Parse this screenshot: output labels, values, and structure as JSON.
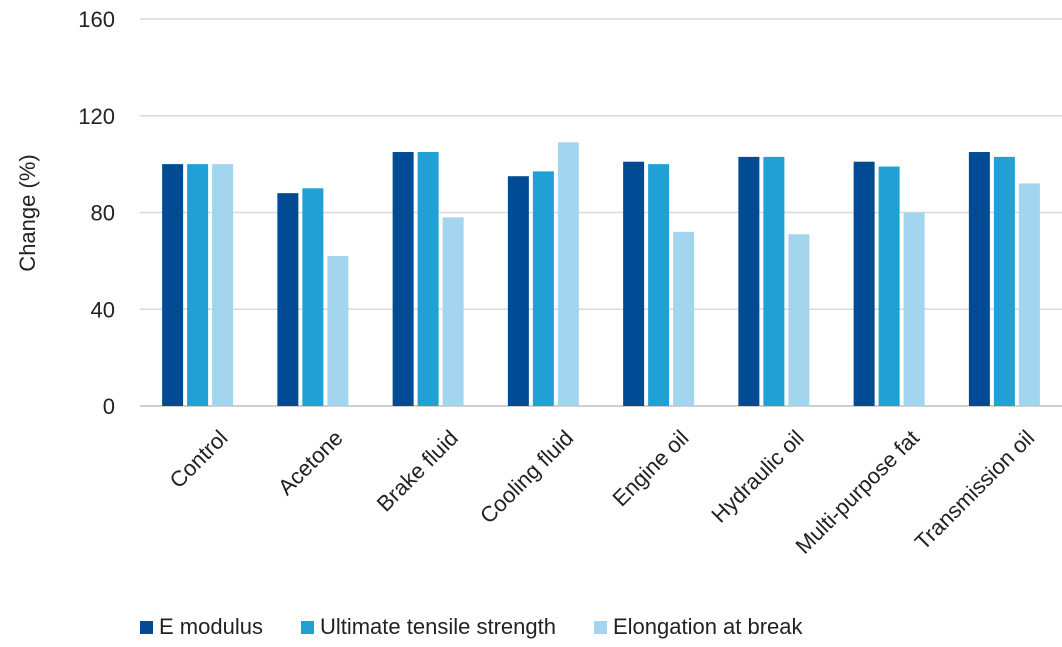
{
  "chart_data": {
    "type": "bar",
    "title": "",
    "xlabel": "",
    "ylabel": "Change (%)",
    "ylim": [
      0,
      160
    ],
    "yticks": [
      0,
      40,
      80,
      120,
      160
    ],
    "grid": true,
    "legend_position": "bottom",
    "categories": [
      "Control",
      "Acetone",
      "Brake fluid",
      "Cooling fluid",
      "Engine oil",
      "Hydraulic oil",
      "Multi-purpose fat",
      "Transmission oil"
    ],
    "series": [
      {
        "name": "E modulus",
        "color": "#004b93",
        "values": [
          100,
          88,
          105,
          95,
          101,
          103,
          101,
          105
        ]
      },
      {
        "name": "Ultimate tensile strength",
        "color": "#21a0d6",
        "values": [
          100,
          90,
          105,
          97,
          100,
          103,
          99,
          103
        ]
      },
      {
        "name": "Elongation at break",
        "color": "#a3d5ee",
        "values": [
          100,
          62,
          78,
          109,
          72,
          71,
          80,
          92
        ]
      }
    ]
  }
}
